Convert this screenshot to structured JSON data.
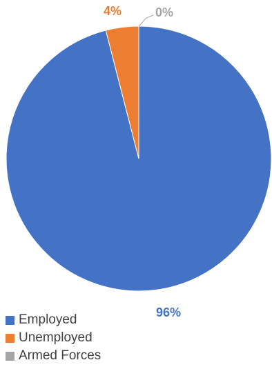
{
  "chart_data": {
    "type": "pie",
    "categories": [
      "Employed",
      "Unemployed",
      "Armed Forces"
    ],
    "values": [
      96,
      4,
      0
    ],
    "data_labels": [
      "96%",
      "4%",
      "0%"
    ],
    "colors": [
      "#4472c4",
      "#ed7d31",
      "#a5a5a5"
    ],
    "title": "",
    "legend_position": "bottom-left",
    "start_angle": "top",
    "direction": "clockwise"
  },
  "legend": {
    "items": [
      {
        "label": "Employed",
        "color": "#4472c4"
      },
      {
        "label": "Unemployed",
        "color": "#ed7d31"
      },
      {
        "label": "Armed Forces",
        "color": "#a5a5a5"
      }
    ]
  }
}
